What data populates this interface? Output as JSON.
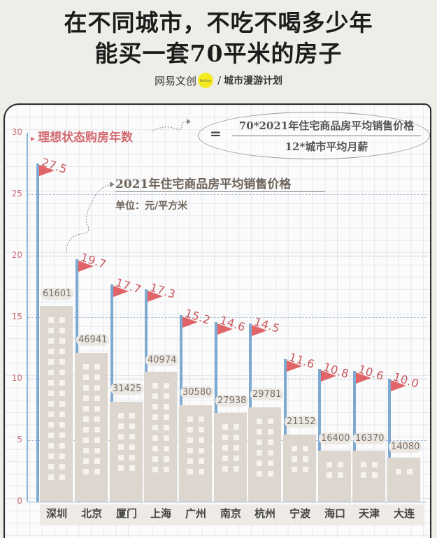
{
  "header": {
    "title_line1": "在不同城市，不吃不喝多少年",
    "title_line2": "能买一套70平米的房子",
    "brand_name": "网易文创",
    "brand_dot": "NetEase",
    "brand_separator": "/",
    "brand_series": "城市漫游计划"
  },
  "legend": {
    "ylabel_arrow": "▸",
    "ylabel": "理想状态购房年数",
    "formula_eq": "=",
    "formula_numerator": "70*2021年住宅商品房平均销售价格",
    "formula_denominator": "12*城市平均月薪",
    "price_label": "2021年住宅商品房平均销售价格",
    "price_unit": "单位：元/平方米"
  },
  "colors": {
    "flag": "#e06468",
    "pole": "#7eaad2",
    "building": "#ddd6cf",
    "ylabel": "#d36b72",
    "background": "#efede8"
  },
  "yaxis": {
    "ticks": [
      "0",
      "5",
      "10",
      "15",
      "20",
      "25",
      "30"
    ]
  },
  "chart_data": {
    "type": "bar",
    "title": "在不同城市，不吃不喝多少年能买一套70平米的房子",
    "categories": [
      "深圳",
      "北京",
      "厦门",
      "上海",
      "广州",
      "南京",
      "杭州",
      "宁波",
      "海口",
      "天津",
      "大连"
    ],
    "series": [
      {
        "name": "理想状态购房年数",
        "values": [
          27.5,
          19.7,
          17.7,
          17.3,
          15.2,
          14.6,
          14.5,
          11.6,
          10.8,
          10.6,
          10.0
        ],
        "labels": [
          "27.5",
          "19.7",
          "17.7",
          "17.3",
          "15.2",
          "14.6",
          "14.5",
          "11.6",
          "10.8",
          "10.6",
          "10.0"
        ]
      },
      {
        "name": "2021年住宅商品房平均销售价格（元/平方米）",
        "values": [
          61601,
          46941,
          31425,
          40974,
          30580,
          27938,
          29781,
          21152,
          16400,
          16370,
          14080
        ],
        "labels": [
          "61601",
          "46941",
          "31425",
          "40974",
          "30580",
          "27938",
          "29781",
          "21152",
          "16400",
          "16370",
          "14080"
        ]
      }
    ],
    "xlabel": "",
    "ylabel": "理想状态购房年数",
    "ylim": [
      0,
      30
    ],
    "yticks": [
      0,
      5,
      10,
      15,
      20,
      25,
      30
    ],
    "grid": true,
    "annotation": "= 70*2021年住宅商品房平均销售价格 / 12*城市平均月薪"
  }
}
